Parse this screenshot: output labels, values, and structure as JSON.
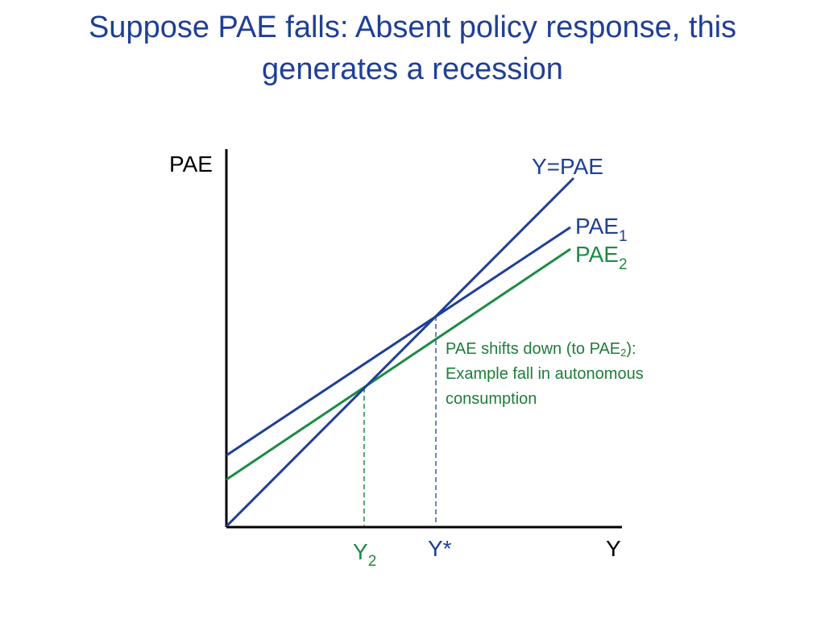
{
  "title": {
    "line1": "Suppose PAE falls: Absent policy response, this",
    "line2": "generates a recession"
  },
  "colors": {
    "title": "#1f3f97",
    "blue": "#1f3f97",
    "green": "#1e8a44",
    "axis": "#000000"
  },
  "axes": {
    "y_label": "PAE",
    "x_label": "Y"
  },
  "curves": {
    "y_eq_pae": {
      "label": "Y=PAE"
    },
    "pae1": {
      "base": "PAE",
      "sub": "1"
    },
    "pae2": {
      "base": "PAE",
      "sub": "2"
    }
  },
  "x_markers": {
    "y2": {
      "base": "Y",
      "sub": "2"
    },
    "ystar": {
      "label": "Y*"
    }
  },
  "annotation": {
    "line1_pre": "PAE shifts down (to PAE",
    "line1_sub": "2",
    "line1_post": "):",
    "line2": "Example fall in autonomous",
    "line3": "consumption"
  }
}
